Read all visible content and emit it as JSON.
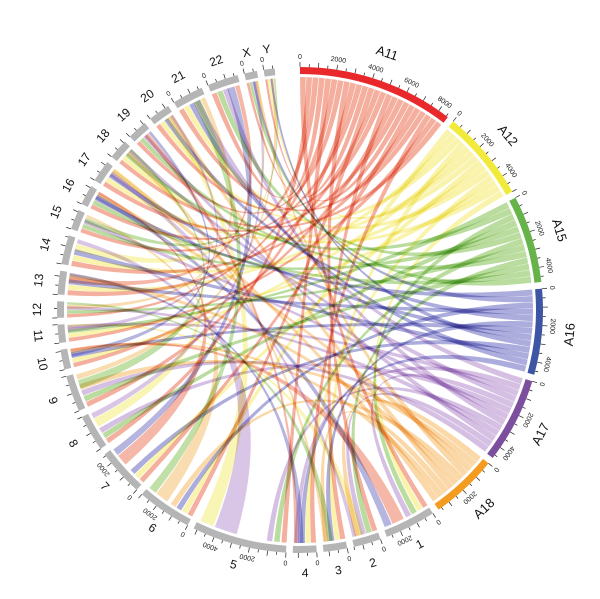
{
  "chart_data": {
    "type": "chord",
    "title": "",
    "colors": {
      "red": "#e8282b",
      "yellow": "#f2ea3a",
      "green": "#66b449",
      "blue": "#3d55a3",
      "purple": "#7b4f9e",
      "orange": "#f39c1f",
      "gray": "#b5b5b5"
    },
    "ribbon_colors": [
      "#f0907a",
      "#f6ef8c",
      "#9fd07a",
      "#8d8dd0",
      "#c5a6d8",
      "#f8c987"
    ],
    "segments": [
      {
        "name": "A11",
        "size": 8600,
        "color": "#e8282b",
        "ticks": [
          "0",
          "2000",
          "4000",
          "6000",
          "8000"
        ]
      },
      {
        "name": "A12",
        "size": 5000,
        "color": "#f2ea3a",
        "ticks": [
          "0",
          "2000",
          "4000"
        ]
      },
      {
        "name": "A15",
        "size": 4800,
        "color": "#66b449",
        "ticks": [
          "0",
          "2000",
          "4000"
        ]
      },
      {
        "name": "A16",
        "size": 4700,
        "color": "#3d55a3",
        "ticks": [
          "0",
          "2000",
          "4000"
        ]
      },
      {
        "name": "A17",
        "size": 4700,
        "color": "#7b4f9e",
        "ticks": [
          "0",
          "2000",
          "4000"
        ]
      },
      {
        "name": "A18",
        "size": 3700,
        "color": "#f39c1f",
        "ticks": [
          "0",
          "2000"
        ]
      },
      {
        "name": "1",
        "size": 2800,
        "color": "#b5b5b5",
        "ticks": [
          "0",
          "2000"
        ]
      },
      {
        "name": "2",
        "size": 1500,
        "color": "#b5b5b5",
        "ticks": [
          "0"
        ]
      },
      {
        "name": "3",
        "size": 1300,
        "color": "#b5b5b5",
        "ticks": [
          "0"
        ]
      },
      {
        "name": "4",
        "size": 1300,
        "color": "#b5b5b5",
        "ticks": [
          "0"
        ]
      },
      {
        "name": "5",
        "size": 5200,
        "color": "#b5b5b5",
        "ticks": [
          "0",
          "2000",
          "4000"
        ]
      },
      {
        "name": "6",
        "size": 3000,
        "color": "#b5b5b5",
        "ticks": [
          "0",
          "2000"
        ]
      },
      {
        "name": "7",
        "size": 2600,
        "color": "#b5b5b5",
        "ticks": [
          "0",
          "2000"
        ]
      },
      {
        "name": "8",
        "size": 2000,
        "color": "#b5b5b5",
        "ticks": []
      },
      {
        "name": "9",
        "size": 2000,
        "color": "#b5b5b5",
        "ticks": []
      },
      {
        "name": "10",
        "size": 1100,
        "color": "#b5b5b5",
        "ticks": []
      },
      {
        "name": "11",
        "size": 1000,
        "color": "#b5b5b5",
        "ticks": []
      },
      {
        "name": "12",
        "size": 900,
        "color": "#b5b5b5",
        "ticks": []
      },
      {
        "name": "13",
        "size": 1300,
        "color": "#b5b5b5",
        "ticks": []
      },
      {
        "name": "14",
        "size": 1600,
        "color": "#b5b5b5",
        "ticks": []
      },
      {
        "name": "15",
        "size": 1100,
        "color": "#b5b5b5",
        "ticks": []
      },
      {
        "name": "16",
        "size": 1100,
        "color": "#b5b5b5",
        "ticks": []
      },
      {
        "name": "17",
        "size": 1200,
        "color": "#b5b5b5",
        "ticks": []
      },
      {
        "name": "18",
        "size": 1100,
        "color": "#b5b5b5",
        "ticks": []
      },
      {
        "name": "19",
        "size": 1100,
        "color": "#b5b5b5",
        "ticks": []
      },
      {
        "name": "20",
        "size": 1200,
        "color": "#b5b5b5",
        "ticks": []
      },
      {
        "name": "21",
        "size": 1700,
        "color": "#b5b5b5",
        "ticks": [
          "0"
        ]
      },
      {
        "name": "22",
        "size": 1700,
        "color": "#b5b5b5",
        "ticks": [
          "0"
        ]
      },
      {
        "name": "X",
        "size": 700,
        "color": "#b5b5b5",
        "ticks": [
          "0"
        ]
      },
      {
        "name": "Y",
        "size": 600,
        "color": "#b5b5b5",
        "ticks": [
          "0"
        ]
      }
    ]
  }
}
